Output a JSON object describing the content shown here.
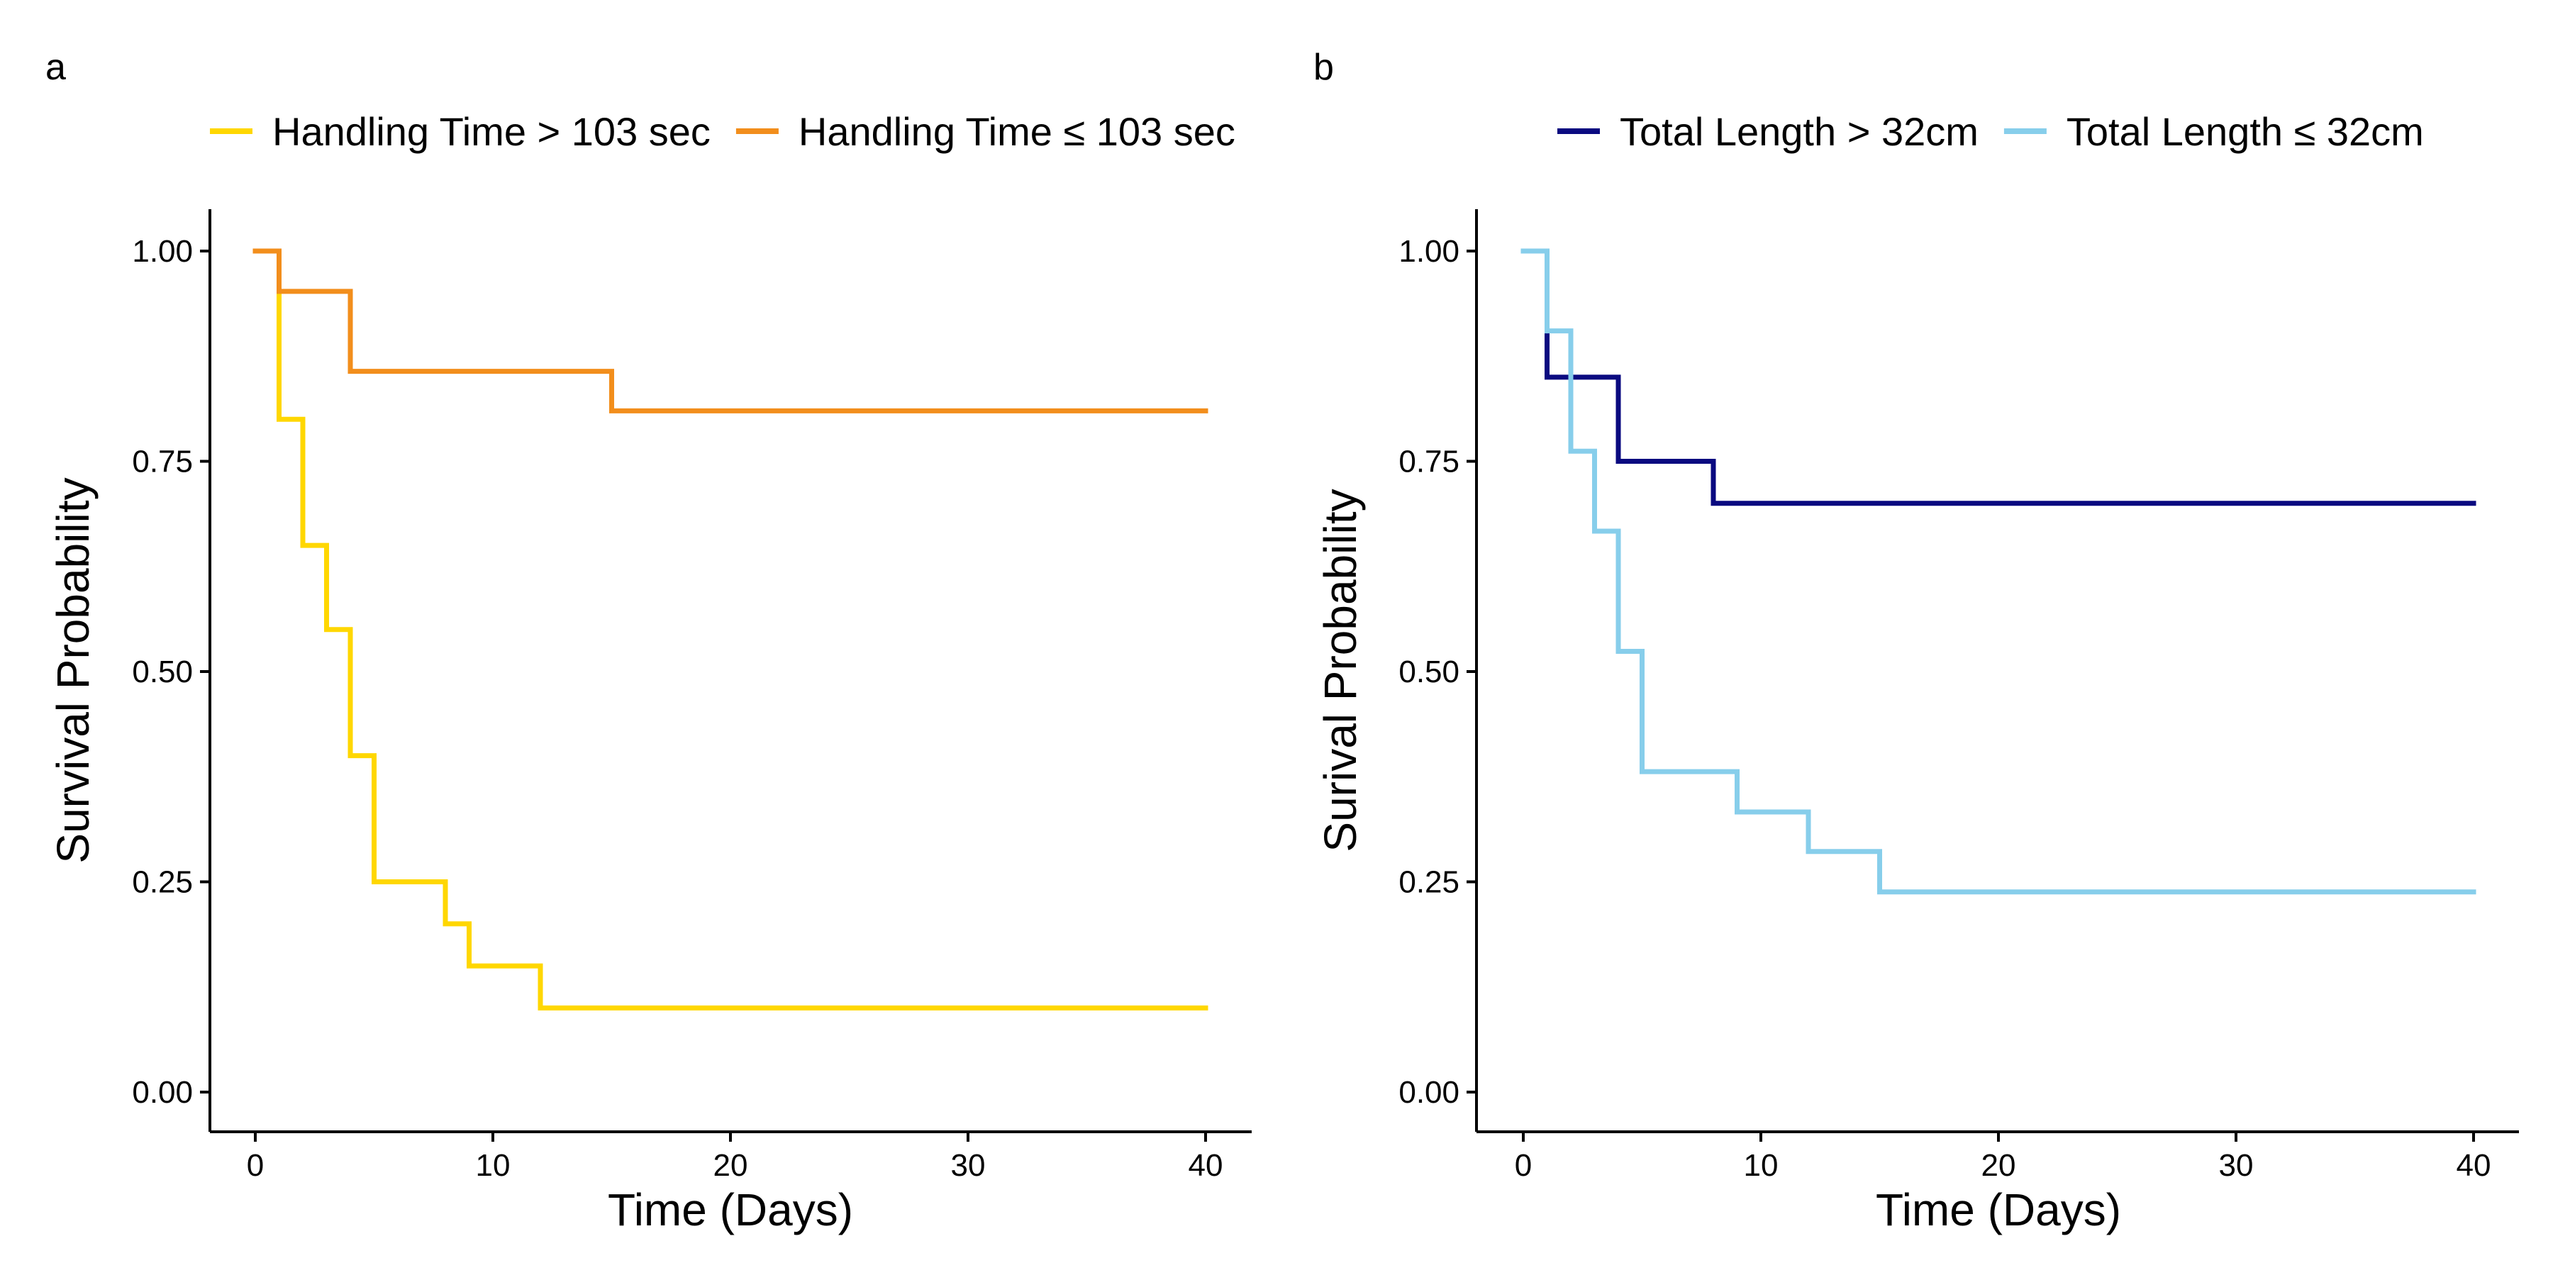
{
  "chart_data": [
    {
      "type": "line",
      "panel_label": "a",
      "title": "",
      "xlabel": "Time (Days)",
      "ylabel": "Survival Probability",
      "xlim": [
        0,
        40
      ],
      "ylim": [
        0,
        1
      ],
      "x_ticks": [
        0,
        10,
        20,
        30,
        40
      ],
      "y_ticks": [
        "0.00",
        "0.25",
        "0.50",
        "0.75",
        "1.00"
      ],
      "grid": false,
      "legend_position": "top",
      "step": true,
      "series": [
        {
          "name": "Handling Time > 103 sec",
          "color": "#FFD700",
          "x": [
            0,
            1,
            2,
            3,
            4,
            5,
            8,
            9,
            12,
            40
          ],
          "y": [
            1.0,
            0.8,
            0.65,
            0.55,
            0.4,
            0.25,
            0.2,
            0.15,
            0.1,
            0.1
          ]
        },
        {
          "name": "Handling Time ≤ 103 sec",
          "color": "#F28E1C",
          "x": [
            0,
            1,
            4,
            15,
            40
          ],
          "y": [
            1.0,
            0.952,
            0.857,
            0.81,
            0.81
          ]
        }
      ]
    },
    {
      "type": "line",
      "panel_label": "b",
      "title": "",
      "xlabel": "Time (Days)",
      "ylabel": "Surival Probability",
      "xlim": [
        0,
        40
      ],
      "ylim": [
        0,
        1
      ],
      "x_ticks": [
        0,
        10,
        20,
        30,
        40
      ],
      "y_ticks": [
        "0.00",
        "0.25",
        "0.50",
        "0.75",
        "1.00"
      ],
      "grid": false,
      "legend_position": "top",
      "step": true,
      "series": [
        {
          "name": "Total Length > 32cm",
          "color": "#0A0A80",
          "x": [
            0,
            1,
            4,
            8,
            40
          ],
          "y": [
            1.0,
            0.85,
            0.75,
            0.7,
            0.7
          ]
        },
        {
          "name": "Total Length ≤ 32cm",
          "color": "#87CEEB",
          "x": [
            0,
            1,
            2,
            3,
            4,
            5,
            9,
            12,
            15,
            40
          ],
          "y": [
            1.0,
            0.905,
            0.762,
            0.667,
            0.524,
            0.381,
            0.333,
            0.286,
            0.238,
            0.238
          ]
        }
      ]
    }
  ]
}
